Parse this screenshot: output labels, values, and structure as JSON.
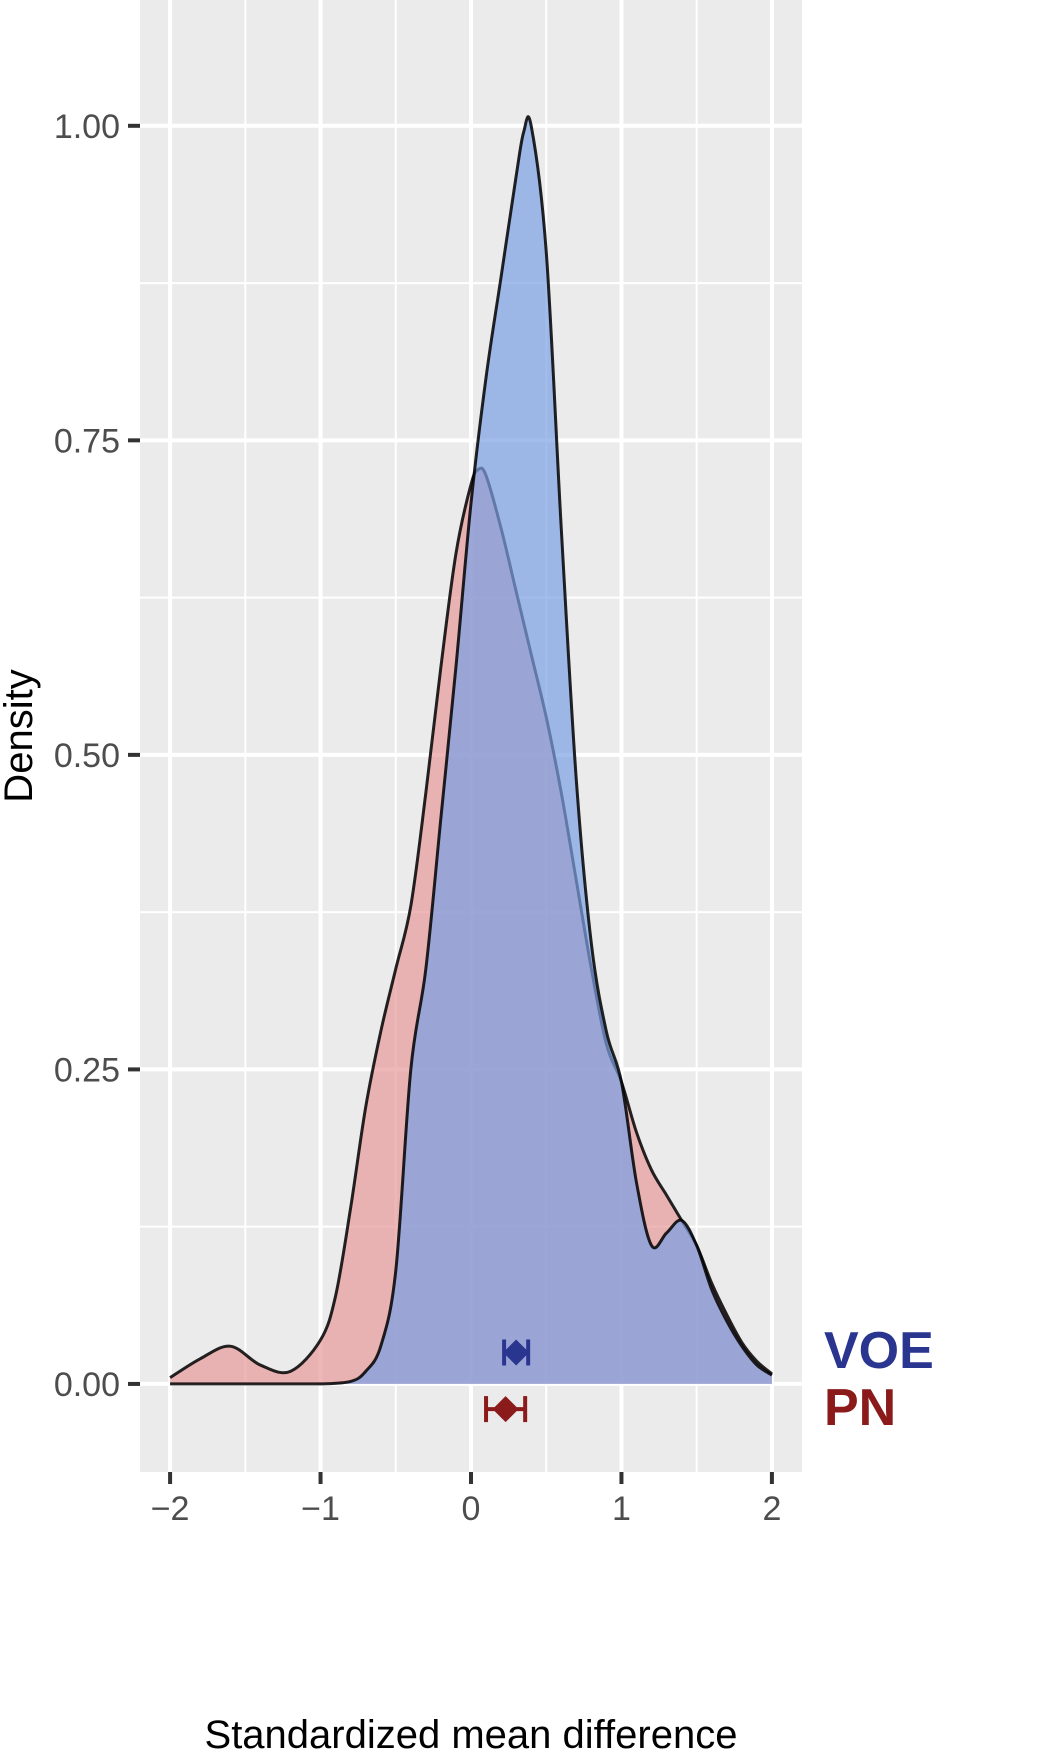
{
  "chart_data": {
    "type": "area",
    "xlabel": "Standardized mean difference",
    "ylabel": "Density",
    "xlim": [
      -2.2,
      2.2
    ],
    "ylim": [
      -0.07,
      1.1
    ],
    "x_ticks": [
      -2,
      -1,
      0,
      1,
      2
    ],
    "x_tick_labels": [
      "−2",
      "−1",
      "0",
      "1",
      "2"
    ],
    "y_ticks": [
      0,
      0.25,
      0.5,
      0.75,
      1.0
    ],
    "y_tick_labels": [
      "0.00",
      "0.25",
      "0.50",
      "0.75",
      "1.00"
    ],
    "grid": true,
    "legend_placement": "right, outside plot at bottom",
    "series": [
      {
        "name": "PN",
        "fill": "#e79a9a",
        "label_color": "#8b1a1a",
        "estimate": {
          "mean": 0.23,
          "ci": [
            0.1,
            0.36
          ],
          "y": -0.02
        },
        "x": [
          -2.0,
          -1.8,
          -1.6,
          -1.4,
          -1.2,
          -1.0,
          -0.9,
          -0.8,
          -0.7,
          -0.6,
          -0.5,
          -0.4,
          -0.3,
          -0.2,
          -0.1,
          0.0,
          0.05,
          0.1,
          0.2,
          0.3,
          0.4,
          0.5,
          0.6,
          0.7,
          0.8,
          0.9,
          1.0,
          1.1,
          1.2,
          1.3,
          1.4,
          1.5,
          1.6,
          1.7,
          1.8,
          1.9,
          2.0
        ],
        "y": [
          0.005,
          0.02,
          0.03,
          0.015,
          0.01,
          0.035,
          0.07,
          0.14,
          0.22,
          0.28,
          0.33,
          0.38,
          0.47,
          0.57,
          0.66,
          0.715,
          0.727,
          0.722,
          0.68,
          0.63,
          0.58,
          0.53,
          0.47,
          0.4,
          0.33,
          0.27,
          0.24,
          0.2,
          0.17,
          0.15,
          0.13,
          0.11,
          0.08,
          0.055,
          0.033,
          0.018,
          0.008
        ]
      },
      {
        "name": "VOE",
        "fill": "#7b9fe4",
        "label_color": "#2a3590",
        "estimate": {
          "mean": 0.3,
          "ci": [
            0.22,
            0.38
          ],
          "y": 0.025
        },
        "x": [
          -2.0,
          -1.2,
          -1.0,
          -0.8,
          -0.7,
          -0.6,
          -0.5,
          -0.4,
          -0.3,
          -0.2,
          -0.1,
          0.0,
          0.1,
          0.2,
          0.3,
          0.35,
          0.4,
          0.5,
          0.6,
          0.7,
          0.8,
          0.9,
          1.0,
          1.1,
          1.2,
          1.3,
          1.4,
          1.5,
          1.6,
          1.7,
          1.8,
          1.9,
          2.0
        ],
        "y": [
          0.0,
          0.0,
          0.0,
          0.002,
          0.01,
          0.03,
          0.09,
          0.25,
          0.33,
          0.45,
          0.57,
          0.7,
          0.8,
          0.88,
          0.96,
          0.995,
          1.0,
          0.9,
          0.68,
          0.48,
          0.35,
          0.28,
          0.24,
          0.16,
          0.11,
          0.12,
          0.13,
          0.11,
          0.075,
          0.05,
          0.03,
          0.015,
          0.007
        ]
      }
    ]
  }
}
